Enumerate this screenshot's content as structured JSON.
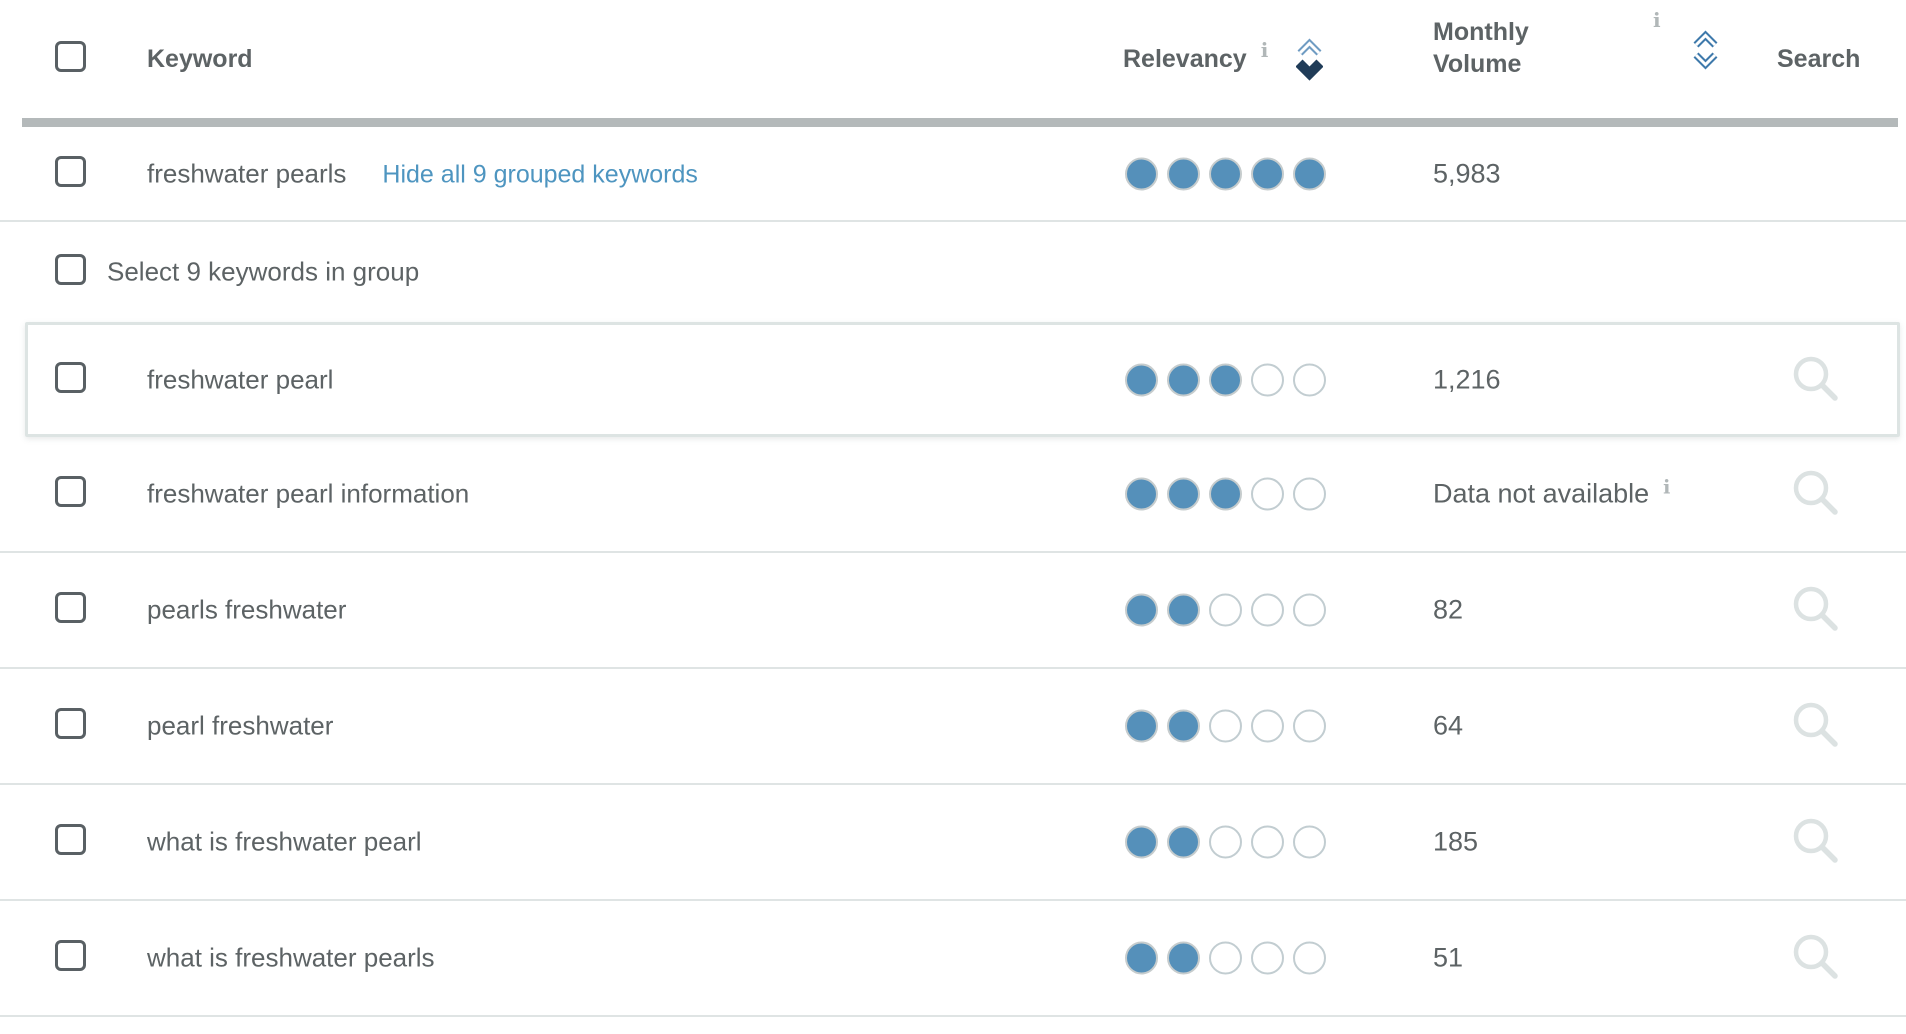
{
  "table": {
    "info_char": "i",
    "header": {
      "keyword": "Keyword",
      "relevancy": "Relevancy",
      "monthly_volume": "Monthly Volume",
      "search": "Search"
    },
    "group_row": {
      "keyword": "freshwater pearls",
      "toggle_link": "Hide all 9 grouped keywords",
      "relevancy": 5,
      "monthly_volume": "5,983"
    },
    "select_row": {
      "label": "Select 9 keywords in group"
    },
    "rows": [
      {
        "keyword": "freshwater pearl",
        "relevancy": 3,
        "monthly_volume": "1,216",
        "highlighted": true,
        "volume_info": false
      },
      {
        "keyword": "freshwater pearl information",
        "relevancy": 3,
        "monthly_volume": "Data not available",
        "highlighted": false,
        "volume_info": true
      },
      {
        "keyword": "pearls freshwater",
        "relevancy": 2,
        "monthly_volume": "82",
        "highlighted": false,
        "volume_info": false
      },
      {
        "keyword": "pearl freshwater",
        "relevancy": 2,
        "monthly_volume": "64",
        "highlighted": false,
        "volume_info": false
      },
      {
        "keyword": "what is freshwater pearl",
        "relevancy": 2,
        "monthly_volume": "185",
        "highlighted": false,
        "volume_info": false
      },
      {
        "keyword": "what is freshwater pearls",
        "relevancy": 2,
        "monthly_volume": "51",
        "highlighted": false,
        "volume_info": false
      }
    ],
    "sort": {
      "relevancy_direction": "descending",
      "monthly_volume_direction": "none"
    },
    "colors": {
      "dot_filled": "#5590ba",
      "dot_empty_border": "#c2cdd1",
      "link": "#4e95c0",
      "sort_active": "#203c58",
      "sort_inactive": "#3e79ab",
      "header_text": "#5d6365",
      "divider": "#dfe4e4",
      "thick_divider": "#b4b9ba",
      "icon_gray": "#dce2e2",
      "info_icon": "#b1b7b8"
    },
    "icons": {
      "search": "magnifying-glass",
      "info": "letter-i",
      "sort": "double-chevron-up-down"
    }
  }
}
